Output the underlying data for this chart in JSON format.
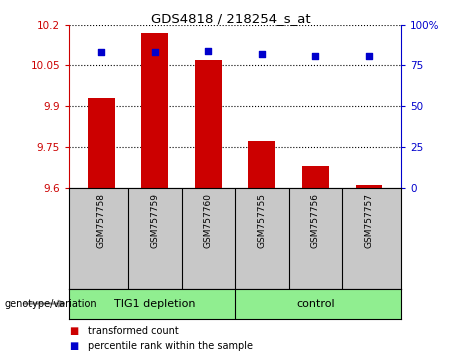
{
  "title": "GDS4818 / 218254_s_at",
  "samples": [
    "GSM757758",
    "GSM757759",
    "GSM757760",
    "GSM757755",
    "GSM757756",
    "GSM757757"
  ],
  "transformed_count": [
    9.93,
    10.17,
    10.07,
    9.77,
    9.68,
    9.61
  ],
  "percentile_rank": [
    83,
    83,
    84,
    82,
    81,
    81
  ],
  "ylim_left": [
    9.6,
    10.2
  ],
  "ylim_right": [
    0,
    100
  ],
  "yticks_left": [
    9.6,
    9.75,
    9.9,
    10.05,
    10.2
  ],
  "yticks_right": [
    0,
    25,
    50,
    75,
    100
  ],
  "bar_color": "#cc0000",
  "scatter_color": "#0000cc",
  "group1_label": "TIG1 depletion",
  "group2_label": "control",
  "group_bg_color": "#90ee90",
  "tick_area_color": "#c8c8c8",
  "legend_red_label": "transformed count",
  "legend_blue_label": "percentile rank within the sample",
  "genotype_label": "genotype/variation",
  "bar_width": 0.5,
  "base_value": 9.6,
  "n_group1": 3,
  "n_group2": 3
}
